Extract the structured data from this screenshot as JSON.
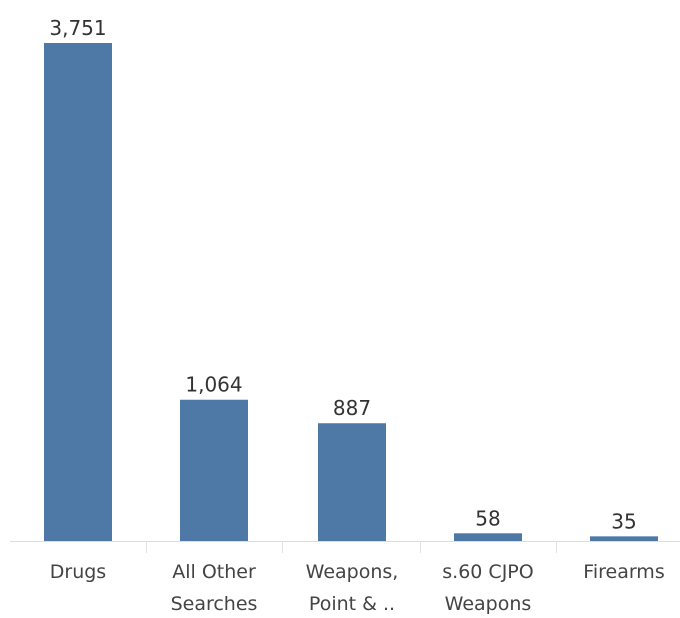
{
  "chart_data": {
    "type": "bar",
    "categories": [
      [
        "Drugs"
      ],
      [
        "All Other",
        "Searches"
      ],
      [
        "Weapons,",
        "Point & .."
      ],
      [
        "s.60 CJPO",
        "Weapons"
      ],
      [
        "Firearms"
      ]
    ],
    "values": [
      3751,
      1064,
      887,
      58,
      35
    ],
    "value_labels": [
      "3,751",
      "1,064",
      "887",
      "58",
      "35"
    ],
    "title": "",
    "xlabel": "",
    "ylabel": "",
    "ylim": [
      0,
      3751
    ],
    "grid": false,
    "legend": "none",
    "bar_color": "#4e79a7"
  }
}
